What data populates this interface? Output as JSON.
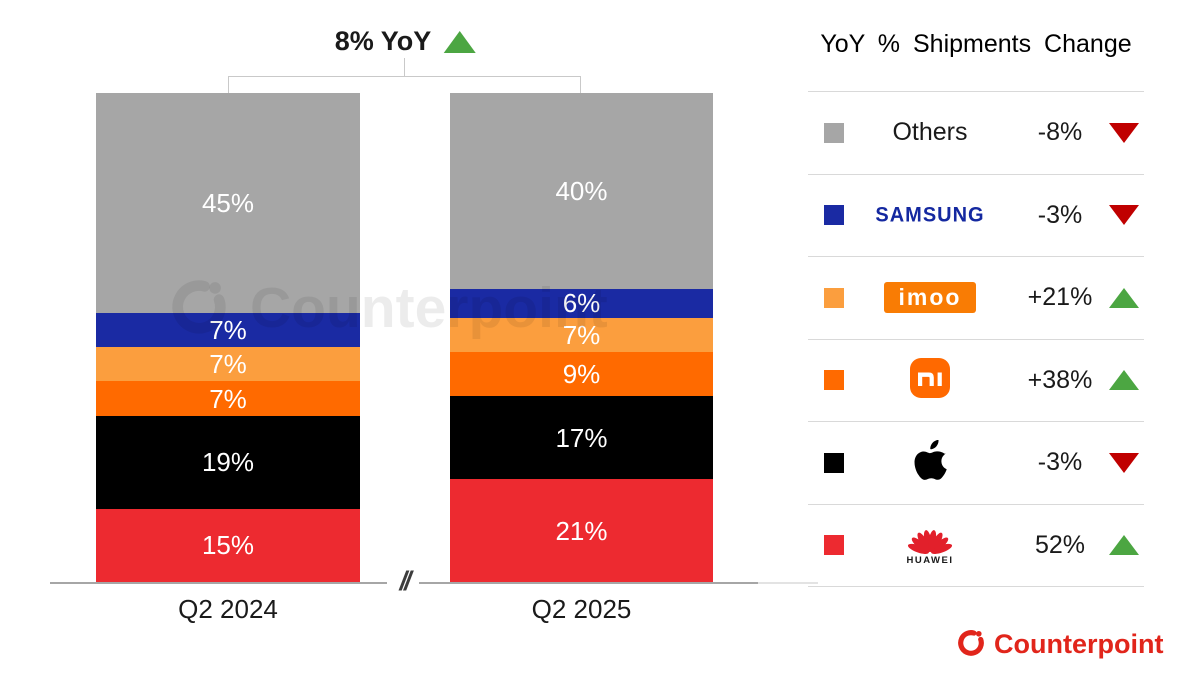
{
  "title": {
    "text": "8% YoY",
    "direction": "up"
  },
  "chart_data": {
    "type": "bar",
    "stacked": true,
    "unit": "%",
    "ylim": [
      0,
      100
    ],
    "categories": [
      "Q2 2024",
      "Q2 2025"
    ],
    "series": [
      {
        "name": "Huawei",
        "color": "#ED2A30",
        "values": [
          15,
          21
        ]
      },
      {
        "name": "Apple",
        "color": "#000000",
        "values": [
          19,
          17
        ]
      },
      {
        "name": "Xiaomi",
        "color": "#FF6A00",
        "values": [
          7,
          9
        ]
      },
      {
        "name": "imoo",
        "color": "#FB9E3E",
        "values": [
          7,
          7
        ]
      },
      {
        "name": "Samsung",
        "color": "#1A2AA3",
        "values": [
          7,
          6
        ]
      },
      {
        "name": "Others",
        "color": "#A6A6A6",
        "values": [
          45,
          40
        ]
      }
    ],
    "annotation": "8% YoY",
    "legend_position": "right"
  },
  "axis": {
    "break_symbol": "//"
  },
  "legend": {
    "title": "YoY % Shipments Change",
    "rows": [
      {
        "brand": "Others",
        "brand_text": "Others",
        "icon": "others-swatch",
        "swatch": "#A6A6A6",
        "value": "-8%",
        "direction": "down"
      },
      {
        "brand": "Samsung",
        "brand_text": "SAMSUNG",
        "icon": "samsung-logo",
        "swatch": "#1A2AA3",
        "value": "-3%",
        "direction": "down"
      },
      {
        "brand": "imoo",
        "brand_text": "imoo",
        "icon": "imoo-logo",
        "swatch": "#FB9E3E",
        "value": "+21%",
        "direction": "up"
      },
      {
        "brand": "Xiaomi",
        "brand_text": "mi",
        "icon": "xiaomi-mi-logo",
        "swatch": "#FF6A00",
        "value": "+38%",
        "direction": "up"
      },
      {
        "brand": "Apple",
        "brand_text": "",
        "icon": "apple-logo",
        "swatch": "#000000",
        "value": "-3%",
        "direction": "down"
      },
      {
        "brand": "Huawei",
        "brand_text": "HUAWEI",
        "icon": "huawei-logo",
        "swatch": "#ED2A30",
        "value": "52%",
        "direction": "up"
      }
    ]
  },
  "watermark": {
    "text": "Counterpoint",
    "icon": "counterpoint-mark-icon"
  },
  "footer": {
    "brand": "Counterpoint",
    "icon": "counterpoint-mark-icon"
  },
  "colors": {
    "up_green": "#4CA642",
    "down_red": "#C00000",
    "counterpoint_red": "#E1251B",
    "samsung_blue": "#1428A0",
    "imoo_orange": "#F97C04",
    "xiaomi_orange": "#FF6900"
  }
}
